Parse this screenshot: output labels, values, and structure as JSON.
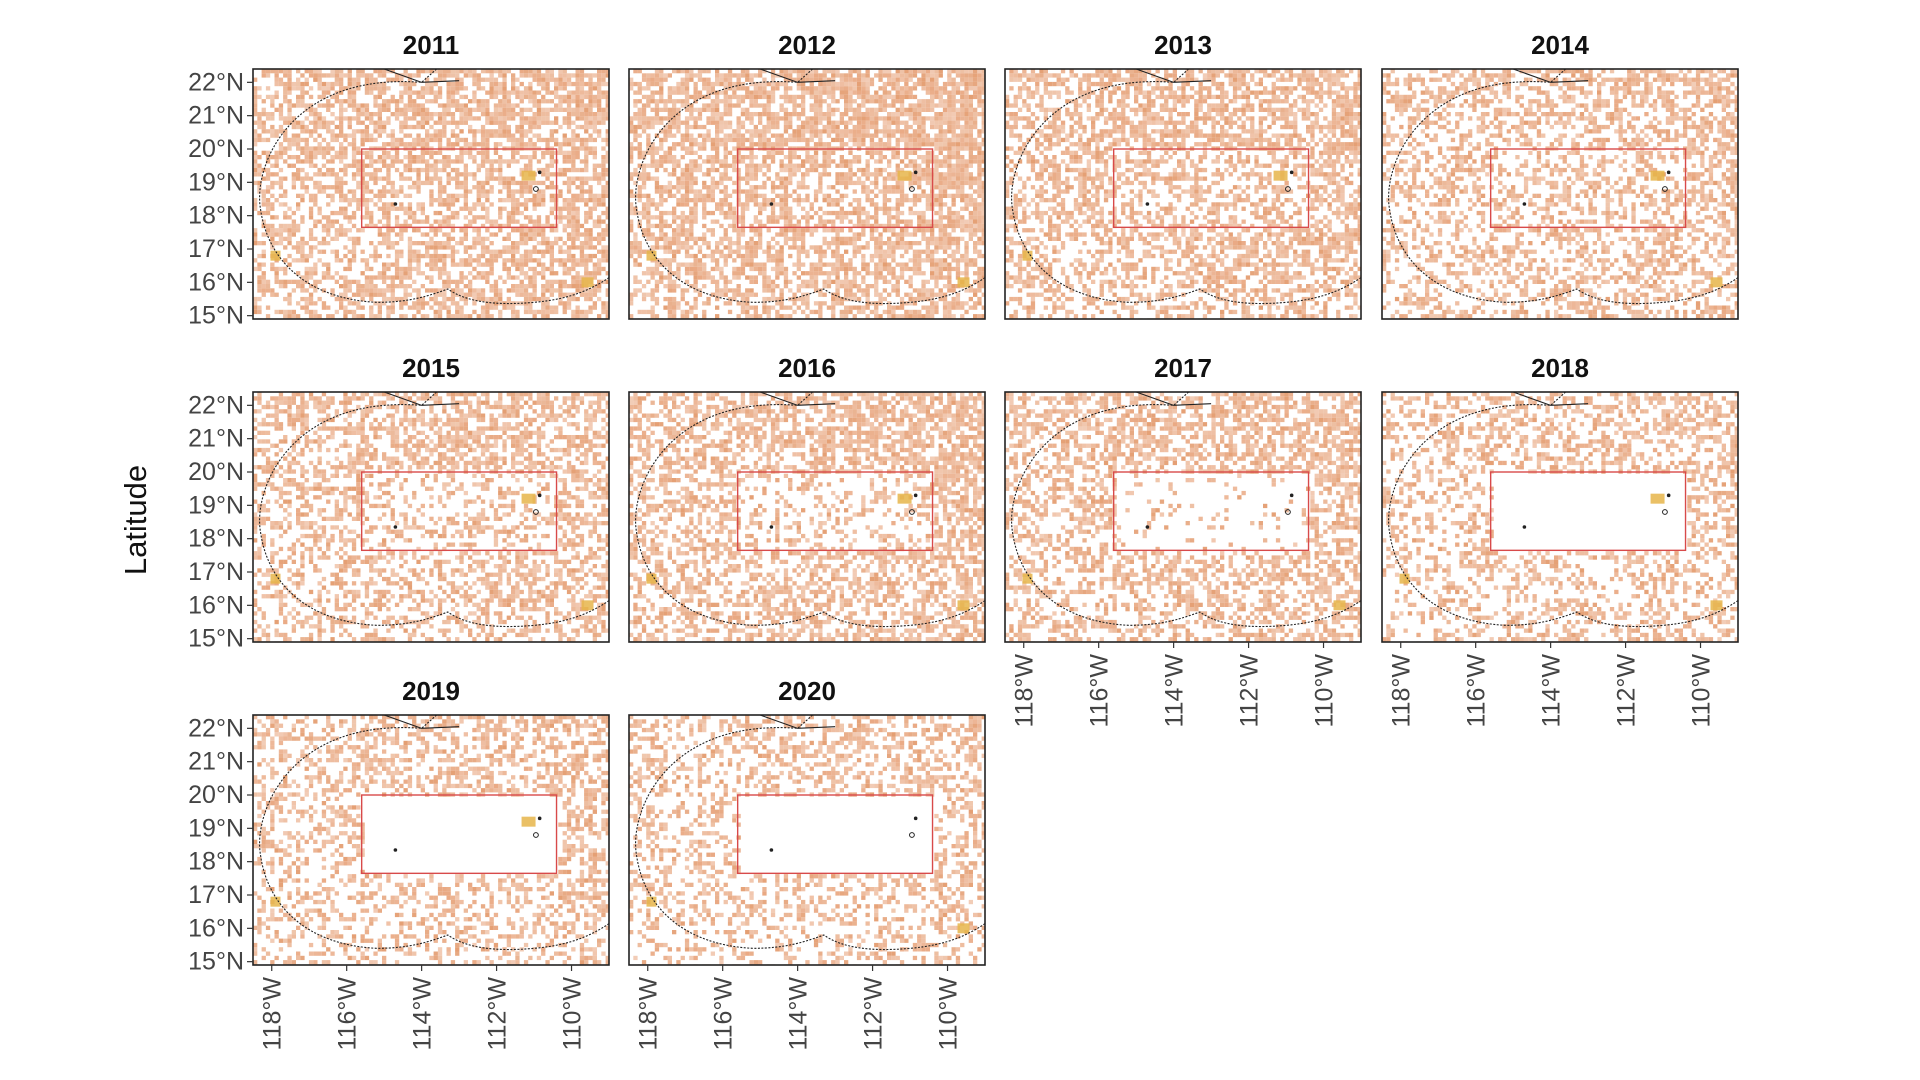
{
  "figure": {
    "ylabel": "Latitude",
    "xlabel": "",
    "lat_ticks": [
      "22°N",
      "21°N",
      "20°N",
      "19°N",
      "18°N",
      "17°N",
      "16°N",
      "15°N"
    ],
    "lon_ticks": [
      "118°W",
      "116°W",
      "114°W",
      "112°W",
      "110°W"
    ],
    "colors": {
      "cell": "#e8a47c",
      "cell_dense": "#e39a6c",
      "hotspot": "#e6b54a",
      "box": "#d84a4a",
      "boundary": "#222222",
      "frame": "#222222"
    }
  },
  "chart_data": {
    "type": "heatmap",
    "ylabel": "Latitude",
    "lon_range": [
      -118.5,
      -109
    ],
    "lat_range": [
      14.9,
      22.4
    ],
    "inner_box": {
      "lon": [
        -115.6,
        -110.4
      ],
      "lat": [
        17.65,
        20.0
      ]
    },
    "panels": [
      {
        "year": "2011",
        "density": 0.62,
        "box_density": 0.6
      },
      {
        "year": "2012",
        "density": 0.66,
        "box_density": 0.62
      },
      {
        "year": "2013",
        "density": 0.56,
        "box_density": 0.48
      },
      {
        "year": "2014",
        "density": 0.46,
        "box_density": 0.4
      },
      {
        "year": "2015",
        "density": 0.48,
        "box_density": 0.3
      },
      {
        "year": "2016",
        "density": 0.56,
        "box_density": 0.3
      },
      {
        "year": "2017",
        "density": 0.52,
        "box_density": 0.12
      },
      {
        "year": "2018",
        "density": 0.4,
        "box_density": 0.0
      },
      {
        "year": "2019",
        "density": 0.42,
        "box_density": 0.0
      },
      {
        "year": "2020",
        "density": 0.38,
        "box_density": 0.0
      }
    ]
  }
}
